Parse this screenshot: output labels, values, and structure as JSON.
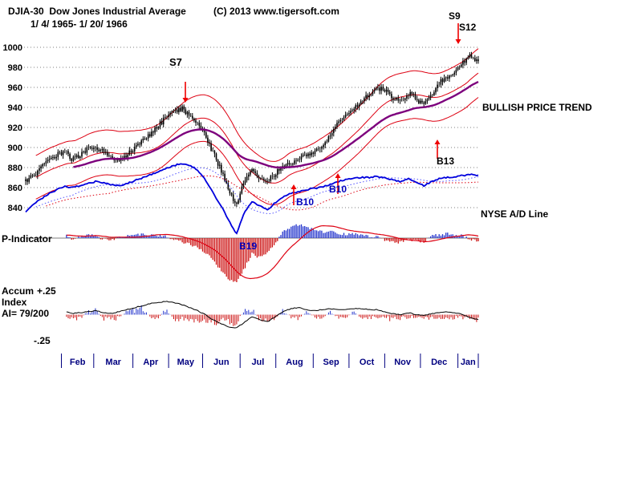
{
  "header": {
    "title": "DJIA-30  Dow Jones Industrial Average",
    "date_range": "1/ 4/ 1965- 1/ 20/ 1966",
    "copyright": "(C) 2013 www.tigersoft.com"
  },
  "labels": {
    "bullish_trend": "BULLISH PRICE TREND",
    "nyse_ad_line": "NYSE A/D Line",
    "p_indicator": "P-Indicator",
    "accum": "Accum",
    "index": "Index",
    "ai_value": "AI= 79/200",
    "plus25": "+.25",
    "minus25": "-.25"
  },
  "signals": {
    "s7": "S7",
    "s9": "S9",
    "s12": "S12",
    "b10a": "B10",
    "b10b": "B10",
    "b13": "B13",
    "b19": "B19"
  },
  "chart_data": {
    "type": "candlestick",
    "title": "DJIA-30 Dow Jones Industrial Average",
    "date_range": "1/4/1965 - 1/20/1966",
    "price_panel": {
      "ylabel_ticks": [
        1000,
        980,
        960,
        940,
        920,
        900,
        880,
        860,
        840
      ],
      "ylim": [
        835,
        1005
      ],
      "weekly_close": [
        866,
        872,
        880,
        888,
        893,
        896,
        888,
        892,
        899,
        901,
        895,
        889,
        887,
        893,
        899,
        906,
        914,
        922,
        930,
        936,
        939,
        932,
        925,
        912,
        895,
        878,
        856,
        842,
        868,
        877,
        870,
        866,
        874,
        881,
        885,
        889,
        893,
        896,
        902,
        912,
        924,
        932,
        938,
        946,
        953,
        960,
        957,
        949,
        946,
        954,
        950,
        941,
        952,
        965,
        969,
        976,
        984,
        992,
        986
      ],
      "ad_line_weekly": [
        836,
        843,
        849,
        854,
        858,
        861,
        860,
        862,
        864,
        866,
        865,
        863,
        862,
        864,
        867,
        870,
        873,
        876,
        879,
        882,
        884,
        882,
        878,
        868,
        855,
        842,
        828,
        813,
        835,
        846,
        842,
        838,
        845,
        851,
        854,
        856,
        858,
        859,
        861,
        863,
        866,
        868,
        869,
        870,
        870,
        871,
        870,
        868,
        866,
        869,
        866,
        862,
        866,
        869,
        870,
        871,
        872,
        873,
        872
      ],
      "overlays": [
        "upper band (red)",
        "30-day average (red)",
        "lower band (red)",
        "long-term trend (purple)",
        "NYSE A/D line (blue, plotted on price scale)"
      ]
    },
    "p_indicator_panel": {
      "type": "histogram",
      "weekly_values": [
        4,
        6,
        5,
        3,
        6,
        7,
        -2,
        3,
        6,
        5,
        -3,
        -5,
        2,
        5,
        8,
        9,
        7,
        5,
        4,
        -3,
        -8,
        -14,
        -20,
        -32,
        -50,
        -72,
        -92,
        -100,
        -70,
        -35,
        -45,
        -30,
        -12,
        14,
        26,
        30,
        24,
        18,
        14,
        16,
        12,
        8,
        10,
        8,
        4,
        3,
        -4,
        -8,
        -10,
        -4,
        -6,
        -8,
        4,
        8,
        10,
        8,
        5,
        -4,
        -8
      ],
      "overlay": "smoothed P-Indicator (red line)"
    },
    "accum_index_panel": {
      "type": "histogram+line",
      "ylim": [
        -0.25,
        0.25
      ],
      "scale_labels": [
        "+.25",
        "-.25"
      ],
      "value": "AI= 79/200",
      "line_weekly": [
        0.01,
        0.02,
        0.02,
        0.01,
        0.02,
        0.03,
        0.01,
        0.02,
        0.03,
        0.04,
        0.02,
        0.01,
        0.03,
        0.05,
        0.07,
        0.09,
        0.11,
        0.12,
        0.13,
        0.12,
        0.1,
        0.07,
        0.04,
        0.0,
        -0.05,
        -0.09,
        -0.12,
        -0.13,
        -0.08,
        -0.02,
        -0.05,
        -0.07,
        -0.02,
        0.03,
        0.06,
        0.07,
        0.05,
        0.04,
        0.05,
        0.06,
        0.05,
        0.05,
        0.06,
        0.06,
        0.05,
        0.05,
        0.03,
        0.01,
        0.0,
        0.02,
        0.0,
        -0.01,
        0.01,
        0.02,
        0.03,
        0.02,
        0.0,
        -0.03,
        -0.05
      ],
      "bars_weekly": [
        -0.05,
        -0.06,
        -0.04,
        -0.05,
        -0.07,
        -0.06,
        -0.08,
        -0.05,
        0.05,
        0.06,
        -0.06,
        -0.07,
        -0.04,
        0.05,
        0.07,
        0.09,
        -0.04,
        -0.05,
        0.08,
        -0.06,
        -0.07,
        -0.08,
        -0.09,
        -0.1,
        -0.12,
        -0.11,
        -0.09,
        -0.12,
        0.06,
        0.08,
        -0.07,
        -0.08,
        -0.05,
        0.06,
        -0.04,
        -0.05,
        0.05,
        -0.04,
        -0.05,
        0.04,
        -0.04,
        -0.05,
        0.04,
        -0.04,
        -0.05,
        -0.04,
        -0.06,
        -0.07,
        -0.05,
        -0.04,
        -0.05,
        -0.06,
        -0.04,
        -0.05,
        -0.04,
        -0.05,
        -0.06,
        -0.08,
        -0.07
      ]
    },
    "months": [
      {
        "label": "Feb",
        "start": 21,
        "end": 40
      },
      {
        "label": "Mar",
        "start": 40,
        "end": 63
      },
      {
        "label": "Apr",
        "start": 63,
        "end": 84
      },
      {
        "label": "May",
        "start": 84,
        "end": 104
      },
      {
        "label": "Jun",
        "start": 104,
        "end": 126
      },
      {
        "label": "Jul",
        "start": 126,
        "end": 147
      },
      {
        "label": "Aug",
        "start": 147,
        "end": 169
      },
      {
        "label": "Sep",
        "start": 169,
        "end": 190
      },
      {
        "label": "Oct",
        "start": 190,
        "end": 211
      },
      {
        "label": "Nov",
        "start": 211,
        "end": 232
      },
      {
        "label": "Dec",
        "start": 232,
        "end": 254
      },
      {
        "label": "Jan",
        "start": 254,
        "end": 267
      }
    ],
    "colors": {
      "candles": "#000000",
      "bands_red": "#dd0011",
      "ma_purple": "#7d007d",
      "ad_blue": "#0000dd",
      "dotted_blue": "#5555ff",
      "dotted_red": "#dd0011",
      "bar_pos": "#2233cc",
      "bar_neg": "#cc1111",
      "month_navy": "#000080",
      "accum_line": "#000000",
      "arrow_red": "#ee0000",
      "grid": "#555555"
    }
  }
}
